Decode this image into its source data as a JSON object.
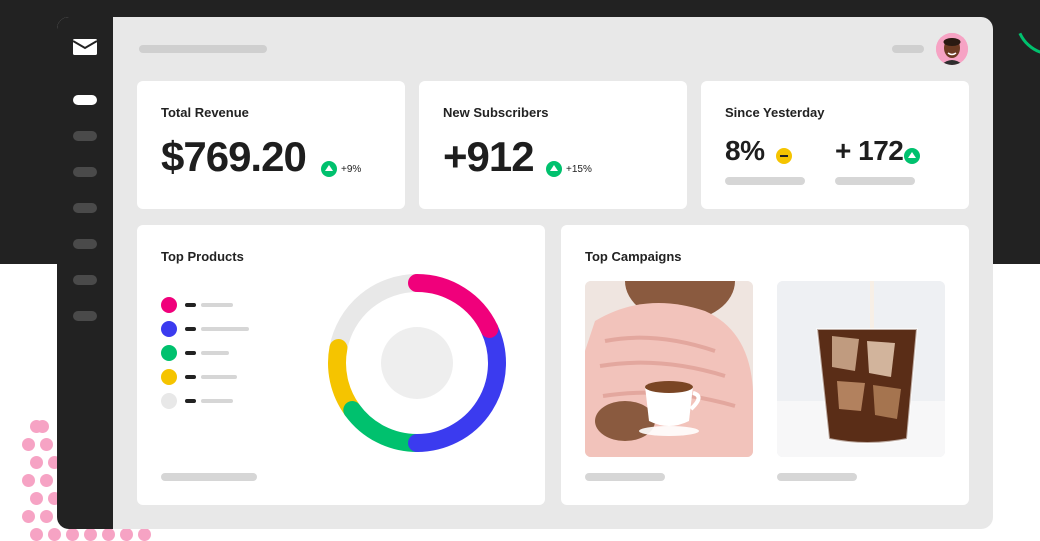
{
  "theme": {
    "dark": "#222222",
    "accent_green": "#00c16e",
    "pink": "#f0007b",
    "blue": "#3b3bef",
    "green": "#00c16e",
    "yellow": "#f5c400",
    "gray": "#e8e8e8"
  },
  "sidebar": {
    "items": [
      {
        "name": "mail-logo-icon"
      },
      {
        "name": "nav-item-1",
        "active": true
      },
      {
        "name": "nav-item-2"
      },
      {
        "name": "nav-item-3"
      },
      {
        "name": "nav-item-4"
      },
      {
        "name": "nav-item-5"
      },
      {
        "name": "nav-item-6"
      },
      {
        "name": "nav-item-7"
      }
    ]
  },
  "cards": {
    "revenue": {
      "title": "Total Revenue",
      "value": "$769.20",
      "delta": "+9%"
    },
    "subscribers": {
      "title": "New Subscribers",
      "value": "+912",
      "delta": "+15%"
    },
    "since": {
      "title": "Since Yesterday",
      "value_a": "8%",
      "value_b": "+ 172"
    },
    "products": {
      "title": "Top Products"
    },
    "campaigns": {
      "title": "Top Campaigns"
    }
  },
  "chart_data": {
    "type": "pie",
    "title": "Top Products",
    "series": [
      {
        "color": "#f0007b",
        "value": 18
      },
      {
        "color": "#3b3bef",
        "value": 32
      },
      {
        "color": "#00c16e",
        "value": 15
      },
      {
        "color": "#f5c400",
        "value": 13
      },
      {
        "color": "#e8e8e8",
        "value": 22
      }
    ]
  }
}
